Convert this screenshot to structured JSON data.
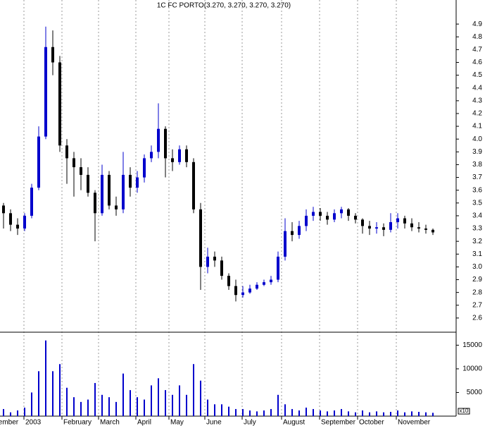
{
  "chart_data": [
    {
      "type": "candlestick",
      "title": "1C FC PORTO(3.270, 3.270, 3.270, 3.270)",
      "x": [
        0.5,
        1.5,
        2.5,
        3.5,
        4.5,
        5.5,
        6.5,
        7.5,
        8.5,
        9.5,
        10.5,
        11.5,
        12.5,
        13.5,
        14.5,
        15.5,
        16.5,
        17.5,
        18.5,
        19.5,
        20.5,
        21.5,
        22.5,
        23.5,
        24.5,
        25.5,
        26.5,
        27.5,
        28.5,
        29.5,
        30.5,
        31.5,
        32.5,
        33.5,
        34.5,
        35.5,
        36.5,
        37.5,
        38.5,
        39.5,
        40.5,
        41.5,
        42.5,
        43.5,
        44.5,
        45.5,
        46.5,
        47.5,
        48.5,
        49.5,
        50.5,
        51.5,
        52.5,
        53.5,
        54.5,
        55.5,
        56.5,
        57.5,
        58.5,
        59.5,
        60.5,
        61.5
      ],
      "open": [
        3.48,
        3.42,
        3.33,
        3.3,
        3.4,
        3.62,
        4.02,
        4.72,
        4.6,
        3.95,
        3.85,
        3.78,
        3.72,
        3.58,
        3.42,
        3.72,
        3.48,
        3.45,
        3.72,
        3.62,
        3.7,
        3.85,
        3.9,
        4.08,
        3.85,
        3.82,
        3.92,
        3.82,
        3.45,
        3.0,
        3.08,
        3.05,
        2.93,
        2.85,
        2.78,
        2.8,
        2.83,
        2.86,
        2.88,
        2.9,
        3.08,
        3.28,
        3.25,
        3.32,
        3.4,
        3.43,
        3.4,
        3.37,
        3.42,
        3.45,
        3.4,
        3.37,
        3.32,
        3.3,
        3.31,
        3.29,
        3.35,
        3.38,
        3.34,
        3.31,
        3.3,
        3.29
      ],
      "high": [
        3.5,
        3.45,
        3.38,
        3.42,
        3.65,
        4.1,
        4.88,
        4.85,
        4.65,
        4.0,
        3.9,
        3.85,
        3.78,
        3.6,
        3.8,
        3.75,
        3.55,
        3.9,
        3.78,
        3.75,
        3.88,
        3.95,
        4.28,
        4.1,
        3.92,
        3.95,
        3.95,
        3.85,
        3.5,
        3.15,
        3.12,
        3.08,
        2.95,
        2.9,
        2.85,
        2.86,
        2.88,
        2.9,
        2.93,
        3.12,
        3.38,
        3.35,
        3.36,
        3.45,
        3.47,
        3.46,
        3.43,
        3.45,
        3.47,
        3.46,
        3.42,
        3.38,
        3.36,
        3.35,
        3.34,
        3.42,
        3.42,
        3.4,
        3.38,
        3.35,
        3.33,
        3.3
      ],
      "low": [
        3.3,
        3.28,
        3.25,
        3.28,
        3.38,
        3.6,
        4.0,
        4.5,
        3.9,
        3.65,
        3.55,
        3.6,
        3.55,
        3.2,
        3.4,
        3.45,
        3.4,
        3.42,
        3.55,
        3.58,
        3.66,
        3.82,
        3.85,
        3.7,
        3.75,
        3.8,
        3.78,
        3.42,
        2.82,
        2.95,
        3.0,
        2.9,
        2.82,
        2.73,
        2.76,
        2.79,
        2.82,
        2.85,
        2.86,
        2.88,
        3.05,
        3.2,
        3.22,
        3.28,
        3.36,
        3.36,
        3.33,
        3.35,
        3.38,
        3.36,
        3.34,
        3.26,
        3.25,
        3.26,
        3.24,
        3.27,
        3.3,
        3.3,
        3.28,
        3.27,
        3.26,
        3.25
      ],
      "close": [
        3.42,
        3.33,
        3.3,
        3.4,
        3.62,
        4.02,
        4.72,
        4.6,
        3.95,
        3.85,
        3.78,
        3.72,
        3.58,
        3.42,
        3.72,
        3.48,
        3.45,
        3.72,
        3.62,
        3.7,
        3.85,
        3.9,
        4.08,
        3.85,
        3.82,
        3.92,
        3.82,
        3.45,
        3.0,
        3.08,
        3.05,
        2.93,
        2.85,
        2.78,
        2.8,
        2.83,
        2.86,
        2.88,
        2.9,
        3.08,
        3.28,
        3.25,
        3.32,
        3.4,
        3.43,
        3.4,
        3.37,
        3.42,
        3.45,
        3.4,
        3.37,
        3.32,
        3.3,
        3.31,
        3.29,
        3.35,
        3.38,
        3.34,
        3.31,
        3.3,
        3.29,
        3.27
      ],
      "up_color": "#0000cc",
      "down_color": "#000000",
      "xlim": [
        0,
        64.5
      ],
      "ylim": [
        2.5,
        5.0
      ],
      "yticks": [
        2.6,
        2.7,
        2.8,
        2.9,
        {
          "value": 3,
          "label": "3.0"
        },
        3.1,
        3.2,
        3.3,
        3.4,
        3.5,
        3.6,
        3.7,
        3.8,
        3.9,
        {
          "value": 4,
          "label": "4.0"
        },
        4.1,
        4.2,
        4.3,
        4.4,
        4.5,
        4.6,
        4.7,
        4.8,
        4.9
      ]
    },
    {
      "type": "bar",
      "x": [
        0.5,
        1.5,
        2.5,
        3.5,
        4.5,
        5.5,
        6.5,
        7.5,
        8.5,
        9.5,
        10.5,
        11.5,
        12.5,
        13.5,
        14.5,
        15.5,
        16.5,
        17.5,
        18.5,
        19.5,
        20.5,
        21.5,
        22.5,
        23.5,
        24.5,
        25.5,
        26.5,
        27.5,
        28.5,
        29.5,
        30.5,
        31.5,
        32.5,
        33.5,
        34.5,
        35.5,
        36.5,
        37.5,
        38.5,
        39.5,
        40.5,
        41.5,
        42.5,
        43.5,
        44.5,
        45.5,
        46.5,
        47.5,
        48.5,
        49.5,
        50.5,
        51.5,
        52.5,
        53.5,
        54.5,
        55.5,
        56.5,
        57.5,
        58.5,
        59.5,
        60.5,
        61.5
      ],
      "values": [
        1500,
        800,
        1200,
        1800,
        5000,
        9500,
        16000,
        9500,
        11000,
        6000,
        4000,
        3000,
        3500,
        7000,
        4500,
        4000,
        3000,
        9000,
        5500,
        4000,
        3500,
        6500,
        8000,
        5500,
        4500,
        6500,
        4500,
        11000,
        7500,
        3500,
        2500,
        2500,
        2000,
        1500,
        1500,
        1200,
        1000,
        1200,
        1500,
        4500,
        2500,
        1500,
        1200,
        1800,
        1500,
        1200,
        1000,
        1200,
        1500,
        1000,
        800,
        1200,
        800,
        1000,
        800,
        900,
        1200,
        800,
        1000,
        900,
        800,
        700
      ],
      "color": "#0000cc",
      "unit_label": "x10",
      "xlim": [
        0,
        64.5
      ],
      "ylim": [
        0,
        17000
      ],
      "yticks": [
        5000,
        10000,
        15000
      ],
      "xticks": [
        {
          "value": -2.2,
          "label": "December"
        },
        {
          "value": 3.4,
          "label": "2003"
        },
        {
          "value": 8.8,
          "label": "February"
        },
        {
          "value": 14.0,
          "label": "March"
        },
        {
          "value": 19.3,
          "label": "April"
        },
        {
          "value": 24.0,
          "label": "May"
        },
        {
          "value": 29.1,
          "label": "June"
        },
        {
          "value": 34.4,
          "label": "July"
        },
        {
          "value": 40.0,
          "label": "August"
        },
        {
          "value": 45.4,
          "label": "September"
        },
        {
          "value": 50.8,
          "label": "October"
        },
        {
          "value": 56.3,
          "label": "November"
        }
      ]
    }
  ]
}
